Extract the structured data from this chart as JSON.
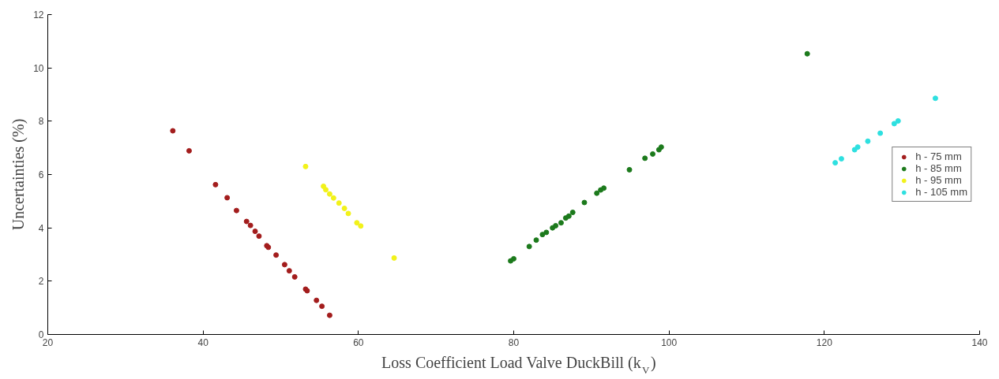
{
  "chart_data": {
    "type": "scatter",
    "xlabel": "Loss Coefficient Load Valve DuckBill (k$_{V}$)",
    "ylabel": "Uncertainties (%)",
    "xlim": [
      20,
      140
    ],
    "xticks": [
      20,
      40,
      60,
      80,
      100,
      120,
      140
    ],
    "ylim": [
      0,
      12
    ],
    "yticks": [
      0,
      2,
      4,
      6,
      8,
      10,
      12
    ],
    "grid": false,
    "legend": "right",
    "marker": "circle",
    "series": [
      {
        "name": "h - 75 mm",
        "color": "#a31d1d",
        "x": [
          36.1,
          38.2,
          41.6,
          43.1,
          44.3,
          45.6,
          46.1,
          46.7,
          47.2,
          48.2,
          48.4,
          49.4,
          50.5,
          51.1,
          51.8,
          53.2,
          53.4,
          54.6,
          55.3,
          56.3
        ],
        "values": [
          7.64,
          6.89,
          5.62,
          5.13,
          4.65,
          4.24,
          4.09,
          3.87,
          3.69,
          3.33,
          3.27,
          2.98,
          2.62,
          2.39,
          2.16,
          1.7,
          1.64,
          1.28,
          1.06,
          0.72
        ]
      },
      {
        "name": "h - 85 mm",
        "color": "#1c7a1c",
        "x": [
          79.6,
          80.0,
          82.0,
          82.9,
          83.7,
          84.2,
          85.0,
          85.4,
          86.1,
          86.7,
          87.1,
          87.6,
          89.1,
          90.7,
          91.2,
          91.6,
          94.9,
          96.9,
          97.9,
          98.7,
          99.0,
          117.8
        ],
        "values": [
          2.76,
          2.84,
          3.3,
          3.54,
          3.75,
          3.83,
          4.0,
          4.08,
          4.19,
          4.37,
          4.44,
          4.58,
          4.95,
          5.3,
          5.42,
          5.49,
          6.18,
          6.61,
          6.77,
          6.93,
          7.03,
          10.53
        ]
      },
      {
        "name": "h - 95 mm",
        "color": "#f2f21a",
        "x": [
          53.2,
          55.5,
          55.8,
          56.3,
          56.8,
          57.5,
          58.2,
          58.7,
          59.8,
          60.3,
          64.6
        ],
        "values": [
          6.3,
          5.56,
          5.43,
          5.27,
          5.12,
          4.93,
          4.73,
          4.54,
          4.19,
          4.07,
          2.87
        ]
      },
      {
        "name": "h - 105 mm",
        "color": "#2ee0e0",
        "x": [
          121.4,
          122.2,
          123.9,
          124.3,
          125.6,
          127.2,
          129.0,
          129.5,
          134.3
        ],
        "values": [
          6.44,
          6.59,
          6.93,
          7.03,
          7.25,
          7.55,
          7.91,
          8.01,
          8.86
        ]
      }
    ]
  }
}
